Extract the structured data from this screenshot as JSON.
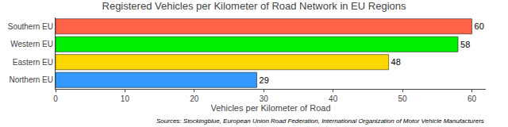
{
  "chart_data": {
    "type": "bar",
    "orientation": "horizontal",
    "title": "Registered Vehicles per Kilometer of Road Network in EU Regions",
    "categories": [
      "Northern EU",
      "Eastern EU",
      "Western EU",
      "Southern EU"
    ],
    "values": [
      29,
      48,
      58,
      60
    ],
    "colors": [
      "#3399FF",
      "#FFD700",
      "#00EE00",
      "#FF6347"
    ],
    "xlabel": "Vehicles per Kilometer of Road",
    "xlim": [
      0,
      62
    ],
    "xticks": [
      0,
      10,
      20,
      30,
      40,
      50,
      60
    ],
    "data_labels": true,
    "grid": false,
    "annotations": [
      "Sources: Stockingblue, European Union Road Federation, International Organization of Motor Vehicle Manufacturers"
    ]
  }
}
